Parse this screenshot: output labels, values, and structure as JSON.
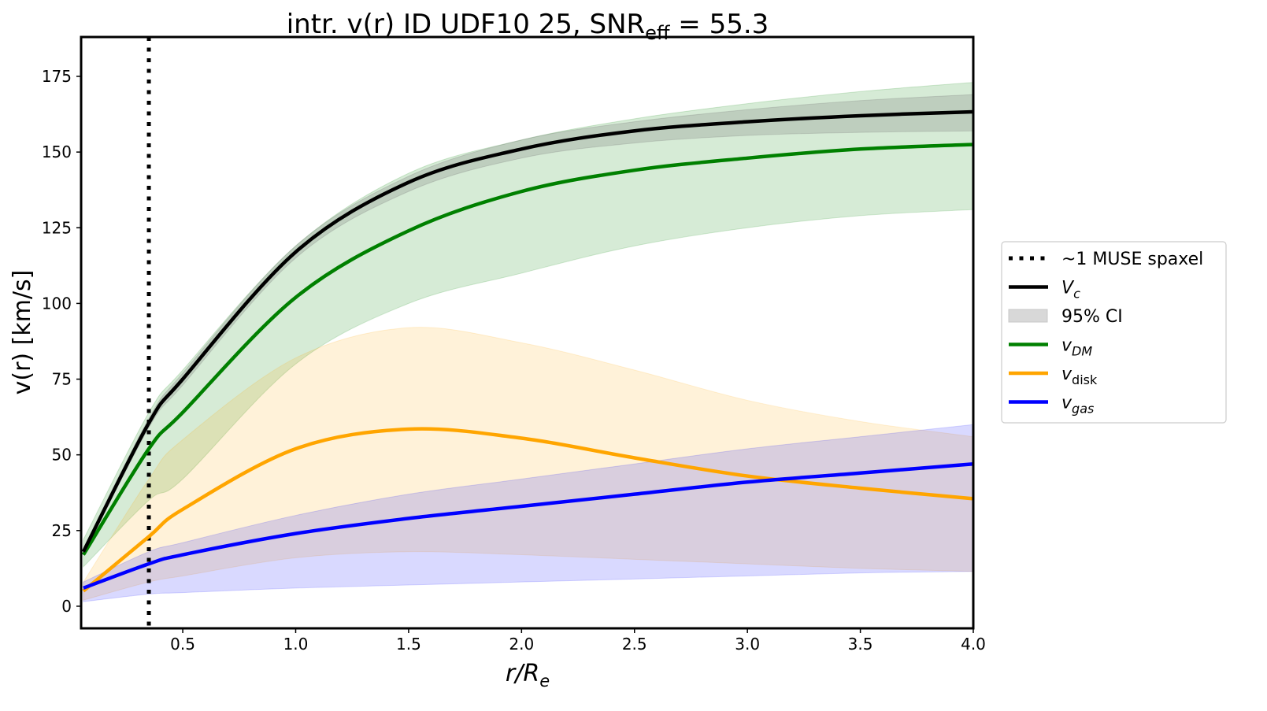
{
  "chart_data": {
    "type": "line",
    "title": {
      "main": "intr. v(r) ID UDF10 25, SNR",
      "sub": "eff",
      "rest": " = 55.3"
    },
    "xlabel": {
      "main": "r/R",
      "sub": "e"
    },
    "ylabel": "v(r) [km/s]",
    "xlim": [
      0.05,
      4.0
    ],
    "ylim": [
      -7.3,
      188
    ],
    "xticks": [
      "0.5",
      "1.0",
      "1.5",
      "2.0",
      "2.5",
      "3.0",
      "3.5",
      "4.0"
    ],
    "yticks": [
      "0",
      "25",
      "50",
      "75",
      "100",
      "125",
      "150",
      "175"
    ],
    "grid": false,
    "legend_position": "outside-right",
    "spaxel_line_x": 0.35,
    "x": [
      0.06,
      0.35,
      0.5,
      1.0,
      1.5,
      2.0,
      2.5,
      3.0,
      3.5,
      4.0
    ],
    "series": [
      {
        "key": "vdm",
        "color": "#008000",
        "band_color": "rgba(0,128,0,0.16)",
        "values": [
          17,
          52,
          64,
          102,
          124,
          137,
          144,
          148,
          151,
          152.5
        ],
        "upper": [
          22,
          64,
          78,
          119,
          143,
          154,
          161,
          166,
          170,
          173
        ],
        "lower": [
          13,
          35,
          42,
          80,
          100,
          110,
          119,
          125,
          129,
          131
        ]
      },
      {
        "key": "vdisk",
        "color": "#FFA500",
        "band_color": "rgba(255,165,0,0.15)",
        "values": [
          5,
          23,
          32,
          52,
          58.5,
          55.5,
          49,
          43,
          39,
          35.5
        ],
        "upper": [
          8,
          42,
          55,
          82,
          92,
          87,
          78,
          68,
          61,
          56
        ],
        "lower": [
          2,
          8,
          10,
          16,
          18,
          17,
          15.5,
          14,
          12.5,
          11.5
        ]
      },
      {
        "key": "vgas",
        "color": "#0000FF",
        "band_color": "rgba(0,0,255,0.15)",
        "values": [
          6,
          14,
          17,
          24,
          29,
          33,
          37,
          41,
          44,
          47
        ],
        "upper": [
          8,
          18,
          21,
          30,
          37,
          42,
          47,
          52,
          56,
          60
        ],
        "lower": [
          1.5,
          4,
          4.5,
          6,
          7,
          8,
          9,
          10,
          11,
          11.5
        ]
      },
      {
        "key": "vc",
        "color": "#000000",
        "band_color": "rgba(120,120,120,0.25)",
        "values": [
          18,
          60.5,
          75,
          117,
          140,
          151,
          157,
          160,
          162,
          163.3
        ],
        "upper": [
          19,
          62,
          77,
          119,
          142,
          154,
          160,
          164,
          167,
          169
        ],
        "lower": [
          17,
          59,
          73,
          115,
          137,
          148,
          153,
          155.5,
          156.5,
          157
        ]
      }
    ],
    "legend": [
      {
        "key": "spaxel",
        "label": "~1 MUSE spaxel",
        "sub": "",
        "style": "dotted",
        "color": "#000000"
      },
      {
        "key": "vc",
        "label": "V",
        "sub": "c",
        "style": "line",
        "color": "#000000"
      },
      {
        "key": "ci",
        "label": "95% CI",
        "sub": "",
        "style": "patch",
        "color": "#d8d8d8"
      },
      {
        "key": "vdm",
        "label": "v",
        "sub": "DM",
        "style": "line",
        "color": "#008000"
      },
      {
        "key": "vdisk",
        "label": "v",
        "sub": "disk",
        "style": "line",
        "color": "#FFA500"
      },
      {
        "key": "vgas",
        "label": "v",
        "sub": "gas",
        "style": "line",
        "color": "#0000FF"
      }
    ]
  }
}
